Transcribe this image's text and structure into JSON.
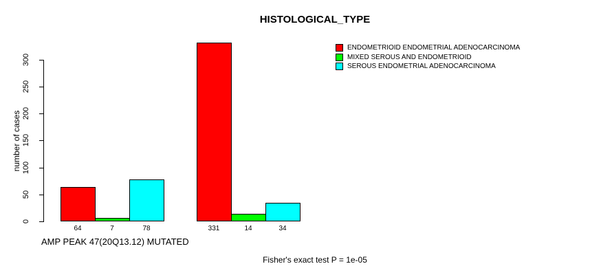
{
  "chart_data": {
    "type": "bar",
    "title": "HISTOLOGICAL_TYPE",
    "ylabel": "number of cases",
    "xlabel": "AMP PEAK 47(20Q13.12) MUTATED",
    "footnote": "Fisher's exact test P = 1e-05",
    "yticks": [
      0,
      50,
      100,
      150,
      200,
      250,
      300
    ],
    "ylim": [
      0,
      335
    ],
    "grid": false,
    "legend_position": "top-right",
    "groups": 2,
    "series": [
      {
        "name": "ENDOMETRIOID ENDOMETRIAL ADENOCARCINOMA",
        "color": "#ff0000",
        "values": [
          64,
          331
        ]
      },
      {
        "name": "MIXED SEROUS AND ENDOMETRIOID",
        "color": "#00ff00",
        "values": [
          7,
          14
        ]
      },
      {
        "name": "SEROUS ENDOMETRIAL ADENOCARCINOMA",
        "color": "#00ffff",
        "values": [
          78,
          34
        ]
      }
    ],
    "bar_value_labels": [
      [
        64,
        7,
        78
      ],
      [
        331,
        14,
        34
      ]
    ],
    "axis_color": "#000000",
    "background_color": "#ffffff"
  }
}
